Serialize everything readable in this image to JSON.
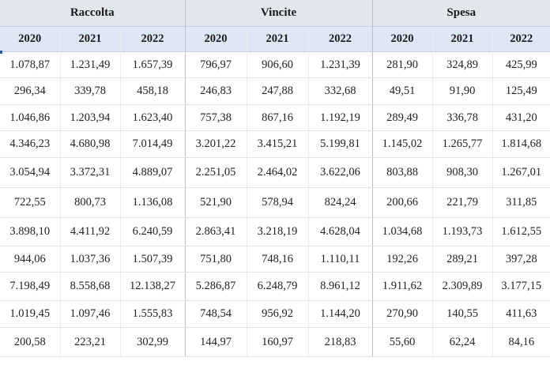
{
  "groups": [
    {
      "label": "Raccolta"
    },
    {
      "label": "Vincite"
    },
    {
      "label": "Spesa"
    }
  ],
  "years": [
    "2020",
    "2021",
    "2022"
  ],
  "rows": [
    [
      "1.078,87",
      "1.231,49",
      "1.657,39",
      "796,97",
      "906,60",
      "1.231,39",
      "281,90",
      "324,89",
      "425,99"
    ],
    [
      "296,34",
      "339,78",
      "458,18",
      "246,83",
      "247,88",
      "332,68",
      "49,51",
      "91,90",
      "125,49"
    ],
    [
      "1.046,86",
      "1.203,94",
      "1.623,40",
      "757,38",
      "867,16",
      "1.192,19",
      "289,49",
      "336,78",
      "431,20"
    ],
    [
      "4.346,23",
      "4.680,98",
      "7.014,49",
      "3.201,22",
      "3.415,21",
      "5.199,81",
      "1.145,02",
      "1.265,77",
      "1.814,68"
    ],
    [
      "3.054,94",
      "3.372,31",
      "4.889,07",
      "2.251,05",
      "2.464,02",
      "3.622,06",
      "803,88",
      "908,30",
      "1.267,01"
    ],
    [
      "722,55",
      "800,73",
      "1.136,08",
      "521,90",
      "578,94",
      "824,24",
      "200,66",
      "221,79",
      "311,85"
    ],
    [
      "3.898,10",
      "4.411,92",
      "6.240,59",
      "2.863,41",
      "3.218,19",
      "4.628,04",
      "1.034,68",
      "1.193,73",
      "1.612,55"
    ],
    [
      "944,06",
      "1.037,36",
      "1.507,39",
      "751,80",
      "748,16",
      "1.110,11",
      "192,26",
      "289,21",
      "397,28"
    ],
    [
      "7.198,49",
      "8.558,68",
      "12.138,27",
      "5.286,87",
      "6.248,79",
      "8.961,12",
      "1.911,62",
      "2.309,89",
      "3.177,15"
    ],
    [
      "1.019,45",
      "1.097,46",
      "1.555,83",
      "748,54",
      "956,92",
      "1.144,20",
      "270,90",
      "140,55",
      "411,63"
    ],
    [
      "200,58",
      "223,21",
      "302,99",
      "144,97",
      "160,97",
      "218,83",
      "55,60",
      "62,24",
      "84,16"
    ]
  ],
  "colors": {
    "group_header_bg": "#e3e6ec",
    "year_header_bg": "#dde7f5",
    "accent_marker": "#2b5797"
  }
}
